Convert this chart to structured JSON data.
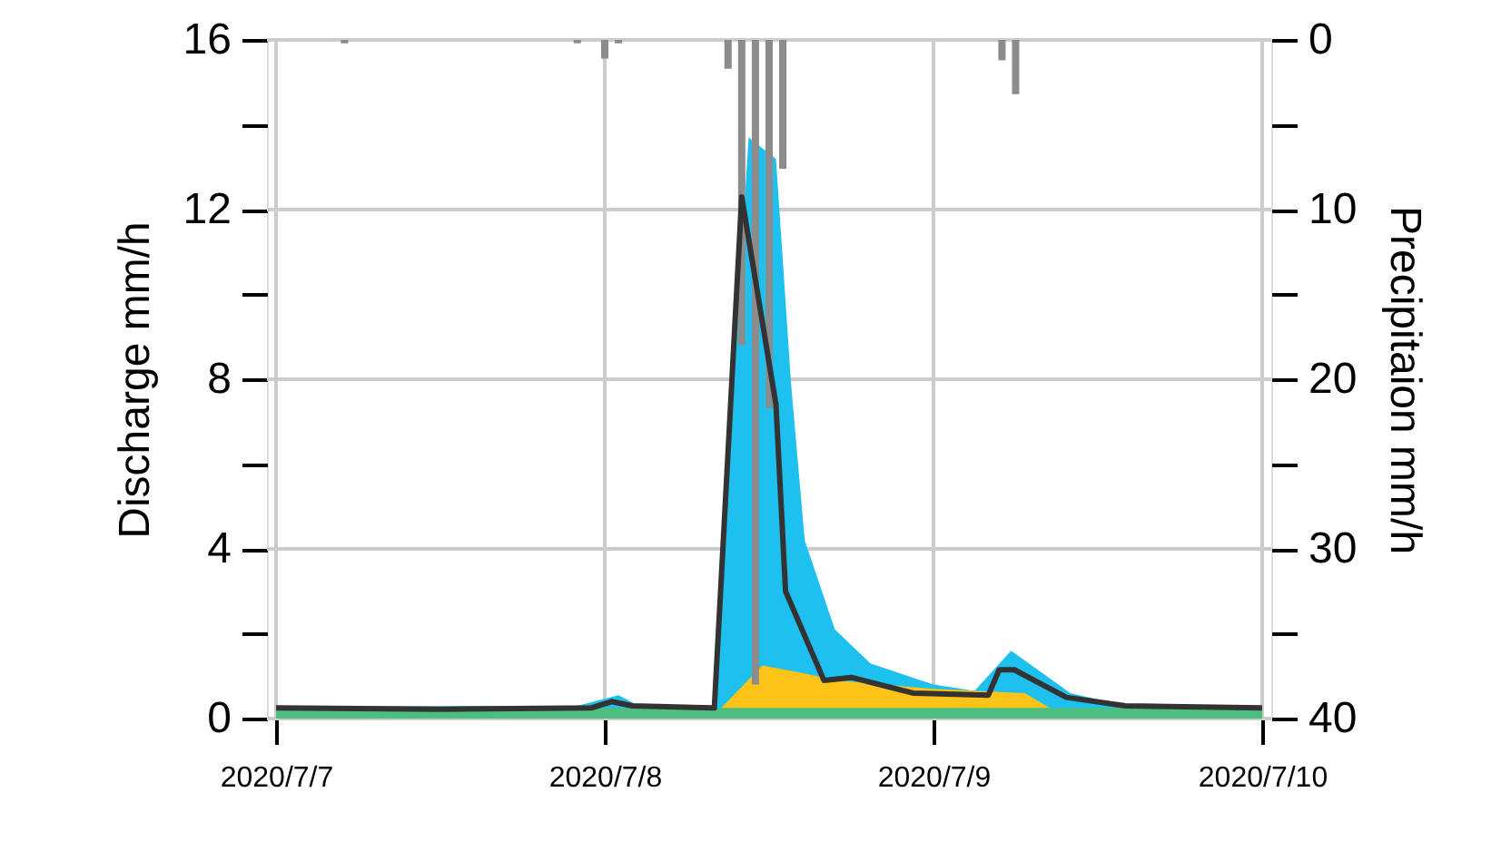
{
  "chart_data": {
    "type": "area",
    "ylabel": "Discharge mm/h",
    "y2label": "Precipitaion mm/h",
    "grid": true,
    "xlim": [
      "2020-07-07T00:00",
      "2020-07-10T00:00"
    ],
    "xticks": [
      {
        "value": "2020-07-07T00:00",
        "label": "2020/7/7"
      },
      {
        "value": "2020-07-08T00:00",
        "label": "2020/7/8"
      },
      {
        "value": "2020-07-09T00:00",
        "label": "2020/7/9"
      },
      {
        "value": "2020-07-10T00:00",
        "label": "2020/7/10"
      }
    ],
    "ylim": [
      0,
      16
    ],
    "yticks": [
      0,
      {
        "value": 2,
        "label": null
      },
      4,
      {
        "value": 6,
        "label": null
      },
      8,
      {
        "value": 10,
        "label": null
      },
      12,
      {
        "value": 14,
        "label": null
      },
      16
    ],
    "y2lim": [
      40,
      0
    ],
    "y2ticks": [
      0,
      {
        "value": 5,
        "label": null
      },
      10,
      {
        "value": 15,
        "label": null
      },
      20,
      {
        "value": 25,
        "label": null
      },
      30,
      {
        "value": 35,
        "label": null
      },
      40
    ],
    "series": [
      {
        "color": "#1ec0ef",
        "x": [
          "2020-07-07T00:00",
          "2020-07-07T22:00",
          "2020-07-08T01:00",
          "2020-07-08T02:30",
          "2020-07-08T08:00",
          "2020-07-08T10:30",
          "2020-07-08T12:30",
          "2020-07-08T13:36",
          "2020-07-08T14:36",
          "2020-07-08T16:48",
          "2020-07-08T19:24",
          "2020-07-09T00:00",
          "2020-07-09T03:00",
          "2020-07-09T05:40",
          "2020-07-09T10:00",
          "2020-07-09T14:00",
          "2020-07-10T00:00"
        ],
        "values": [
          0.28,
          0.3,
          0.55,
          0.3,
          0.28,
          13.7,
          13.2,
          7.9,
          4.2,
          2.1,
          1.3,
          0.8,
          0.65,
          1.6,
          0.6,
          0.3,
          0.28
        ]
      },
      {
        "color": "#fcc318",
        "x": [
          "2020-07-08T08:30",
          "2020-07-08T11:30",
          "2020-07-08T14:00",
          "2020-07-08T17:00",
          "2020-07-09T00:00",
          "2020-07-09T06:40",
          "2020-07-09T08:30"
        ],
        "values": [
          0.25,
          1.25,
          1.1,
          0.9,
          0.7,
          0.6,
          0.25
        ]
      },
      {
        "color": "#4cbf7f",
        "x": [
          "2020-07-07T00:00",
          "2020-07-10T00:00"
        ],
        "values": [
          0.25,
          0.25
        ]
      },
      {
        "type": "bar",
        "axis": "y2",
        "color": "#8c8c8c",
        "x": [
          "2020-07-07T05:00",
          "2020-07-07T22:00",
          "2020-07-08T00:00",
          "2020-07-08T01:00",
          "2020-07-08T09:00",
          "2020-07-08T10:00",
          "2020-07-08T11:00",
          "2020-07-08T12:00",
          "2020-07-08T13:00",
          "2020-07-09T05:00",
          "2020-07-09T06:00"
        ],
        "values": [
          0.2,
          0.2,
          1.1,
          0.2,
          1.7,
          18,
          38,
          21.7,
          7.6,
          1.2,
          3.2
        ]
      },
      {
        "type": "line",
        "color": "#333333",
        "x": [
          "2020-07-07T00:00",
          "2020-07-07T12:00",
          "2020-07-07T23:00",
          "2020-07-08T00:30",
          "2020-07-08T02:00",
          "2020-07-08T08:00",
          "2020-07-08T10:00",
          "2020-07-08T12:30",
          "2020-07-08T13:12",
          "2020-07-08T16:00",
          "2020-07-08T18:00",
          "2020-07-08T22:30",
          "2020-07-09T04:00",
          "2020-07-09T04:48",
          "2020-07-09T05:54",
          "2020-07-09T09:42",
          "2020-07-09T14:00",
          "2020-07-10T00:00"
        ],
        "values": [
          0.25,
          0.22,
          0.25,
          0.4,
          0.3,
          0.25,
          12.3,
          7.4,
          3.0,
          0.9,
          0.97,
          0.6,
          0.55,
          1.15,
          1.15,
          0.5,
          0.3,
          0.25
        ]
      }
    ]
  }
}
